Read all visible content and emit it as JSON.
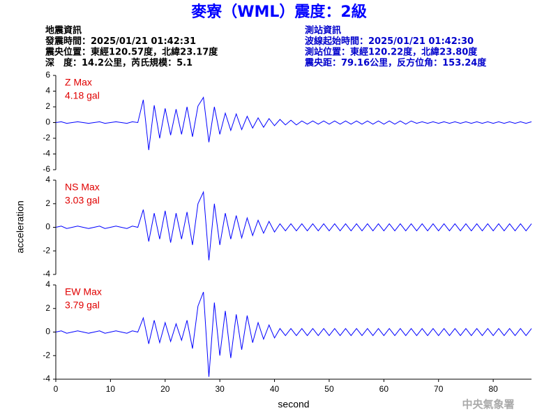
{
  "title": "麥寮（WML）震度：2級",
  "info_left": [
    "地震資訊",
    "發震時間：2025/01/21 01:42:31",
    "震央位置：東經120.57度，北緯23.17度",
    "深　度：14.2公里，芮氏規模：5.1"
  ],
  "info_right": [
    "測站資訊",
    "波線起始時間：2025/01/21 01:42:30",
    "測站位置：東經120.22度，北緯23.80度",
    "震央距：79.16公里，反方位角：153.24度"
  ],
  "ylabel": "acceleration",
  "watermark": "中央氣象署",
  "chart_data": [
    {
      "type": "line",
      "annotations": [
        "Z Max",
        "4.18 gal"
      ],
      "x": [
        0,
        1,
        2,
        3,
        4,
        5,
        6,
        7,
        8,
        9,
        10,
        11,
        12,
        13,
        14,
        15,
        16,
        17,
        18,
        19,
        20,
        21,
        22,
        23,
        24,
        25,
        26,
        27,
        28,
        29,
        30,
        31,
        32,
        33,
        34,
        35,
        36,
        37,
        38,
        39,
        40,
        41,
        42,
        43,
        44,
        45,
        46,
        47,
        48,
        49,
        50,
        51,
        52,
        53,
        54,
        55,
        56,
        57,
        58,
        59,
        60,
        61,
        62,
        63,
        64,
        65,
        66,
        67,
        68,
        69,
        70,
        71,
        72,
        73,
        74,
        75,
        76,
        77,
        78,
        79,
        80,
        81,
        82,
        83,
        84,
        85,
        86,
        87
      ],
      "series": [
        {
          "name": "Z",
          "color": "#0000ff",
          "values": [
            0,
            0.1,
            -0.1,
            0,
            0.1,
            0,
            -0.1,
            0,
            0.1,
            -0.1,
            0,
            0.1,
            0,
            -0.1,
            0.1,
            0,
            2.9,
            -3.5,
            2.2,
            -2.0,
            1.8,
            -1.6,
            1.7,
            -1.5,
            2.0,
            -1.8,
            2.1,
            3.2,
            -2.5,
            2.0,
            -1.5,
            1.2,
            -1.0,
            1.1,
            -0.9,
            0.8,
            -0.7,
            0.6,
            -0.6,
            0.5,
            -0.4,
            0.4,
            -0.3,
            0.3,
            -0.3,
            0.2,
            -0.2,
            0.2,
            -0.2,
            0.2,
            -0.2,
            0.2,
            -0.2,
            0.2,
            -0.2,
            0.2,
            -0.2,
            0.2,
            -0.2,
            0.2,
            -0.2,
            0.2,
            -0.2,
            0.2,
            -0.2,
            0.2,
            -0.1,
            0.1,
            -0.1,
            0.1,
            -0.1,
            0.1,
            -0.1,
            0.1,
            -0.1,
            0.1,
            -0.1,
            0.1,
            -0.1,
            0.1,
            -0.1,
            0.1,
            -0.1,
            0.1,
            -0.1,
            0.1,
            -0.1,
            0.1
          ]
        }
      ],
      "xlim": [
        0,
        87
      ],
      "ylim": [
        -6,
        6
      ],
      "yticks": [
        -6,
        -4,
        -2,
        0,
        2,
        4,
        6
      ]
    },
    {
      "type": "line",
      "annotations": [
        "NS Max",
        "3.03 gal"
      ],
      "x": [
        0,
        1,
        2,
        3,
        4,
        5,
        6,
        7,
        8,
        9,
        10,
        11,
        12,
        13,
        14,
        15,
        16,
        17,
        18,
        19,
        20,
        21,
        22,
        23,
        24,
        25,
        26,
        27,
        28,
        29,
        30,
        31,
        32,
        33,
        34,
        35,
        36,
        37,
        38,
        39,
        40,
        41,
        42,
        43,
        44,
        45,
        46,
        47,
        48,
        49,
        50,
        51,
        52,
        53,
        54,
        55,
        56,
        57,
        58,
        59,
        60,
        61,
        62,
        63,
        64,
        65,
        66,
        67,
        68,
        69,
        70,
        71,
        72,
        73,
        74,
        75,
        76,
        77,
        78,
        79,
        80,
        81,
        82,
        83,
        84,
        85,
        86,
        87
      ],
      "series": [
        {
          "name": "NS",
          "color": "#0000ff",
          "values": [
            0,
            0.1,
            -0.1,
            0,
            0.1,
            0,
            -0.1,
            0,
            0.1,
            -0.1,
            0,
            0.1,
            0,
            -0.1,
            0.1,
            0,
            1.5,
            -1.2,
            1.2,
            -1.0,
            1.4,
            -1.3,
            1.2,
            -1.0,
            1.3,
            -1.5,
            2.0,
            3.0,
            -2.8,
            2.0,
            -1.5,
            1.2,
            -1.0,
            1.0,
            -0.9,
            0.8,
            -0.7,
            0.6,
            -0.5,
            0.5,
            -0.4,
            0.3,
            -0.3,
            0.3,
            -0.3,
            0.3,
            -0.3,
            0.3,
            -0.3,
            0.3,
            -0.3,
            0.3,
            -0.3,
            0.3,
            -0.3,
            0.3,
            -0.3,
            0.3,
            -0.3,
            0.3,
            -0.3,
            0.3,
            -0.3,
            0.3,
            -0.3,
            0.3,
            -0.3,
            0.3,
            -0.3,
            0.3,
            -0.3,
            0.3,
            -0.3,
            0.3,
            -0.3,
            0.3,
            -0.3,
            0.3,
            -0.3,
            0.3,
            -0.3,
            0.3,
            -0.3,
            0.3,
            -0.3,
            0.3,
            -0.3,
            0.3
          ]
        }
      ],
      "xlim": [
        0,
        87
      ],
      "ylim": [
        -4,
        4
      ],
      "yticks": [
        -4,
        -2,
        0,
        2,
        4
      ]
    },
    {
      "type": "line",
      "annotations": [
        "EW Max",
        "3.79 gal"
      ],
      "xlabel": "second",
      "x": [
        0,
        1,
        2,
        3,
        4,
        5,
        6,
        7,
        8,
        9,
        10,
        11,
        12,
        13,
        14,
        15,
        16,
        17,
        18,
        19,
        20,
        21,
        22,
        23,
        24,
        25,
        26,
        27,
        28,
        29,
        30,
        31,
        32,
        33,
        34,
        35,
        36,
        37,
        38,
        39,
        40,
        41,
        42,
        43,
        44,
        45,
        46,
        47,
        48,
        49,
        50,
        51,
        52,
        53,
        54,
        55,
        56,
        57,
        58,
        59,
        60,
        61,
        62,
        63,
        64,
        65,
        66,
        67,
        68,
        69,
        70,
        71,
        72,
        73,
        74,
        75,
        76,
        77,
        78,
        79,
        80,
        81,
        82,
        83,
        84,
        85,
        86,
        87
      ],
      "series": [
        {
          "name": "EW",
          "color": "#0000ff",
          "values": [
            0,
            0.1,
            -0.1,
            0,
            0.1,
            0,
            -0.1,
            0,
            0.1,
            -0.1,
            0,
            0.1,
            0,
            -0.1,
            0.1,
            0,
            1.2,
            -1.0,
            1.0,
            -0.9,
            0.8,
            -0.8,
            0.7,
            -0.7,
            1.0,
            -1.4,
            2.2,
            3.4,
            -3.8,
            2.5,
            -2.0,
            1.8,
            -2.2,
            1.5,
            -1.5,
            1.4,
            -0.9,
            0.8,
            -0.6,
            0.6,
            -0.5,
            0.3,
            -0.3,
            0.3,
            -0.3,
            0.3,
            -0.3,
            0.3,
            -0.3,
            0.3,
            -0.3,
            0.3,
            -0.3,
            0.3,
            -0.3,
            0.3,
            -0.3,
            0.3,
            -0.3,
            0.3,
            -0.3,
            0.3,
            -0.3,
            0.3,
            -0.3,
            0.3,
            -0.3,
            0.3,
            -0.3,
            0.3,
            -0.3,
            0.3,
            -0.3,
            0.3,
            -0.3,
            0.3,
            -0.3,
            0.3,
            -0.3,
            0.3,
            -0.3,
            0.3,
            -0.3,
            0.3,
            -0.3,
            0.3,
            -0.3,
            0.3
          ]
        }
      ],
      "xlim": [
        0,
        87
      ],
      "ylim": [
        -4,
        4
      ],
      "yticks": [
        -4,
        -2,
        0,
        2,
        4
      ],
      "xticks": [
        0,
        10,
        20,
        30,
        40,
        50,
        60,
        70,
        80
      ]
    }
  ]
}
